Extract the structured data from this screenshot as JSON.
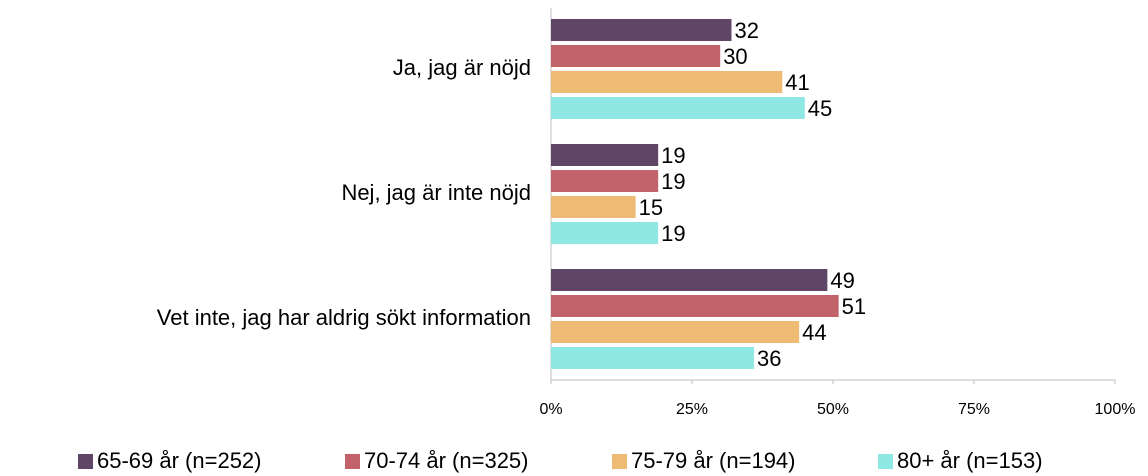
{
  "chart_data": {
    "type": "hbar",
    "categories": [
      "Ja, jag är nöjd",
      "Nej, jag är inte nöjd",
      "Vet inte, jag har aldrig sökt information"
    ],
    "series": [
      {
        "name": "65-69 år (n=252)",
        "color": "#5f4566",
        "values": [
          32,
          19,
          49
        ]
      },
      {
        "name": "70-74 år (n=325)",
        "color": "#c2626b",
        "values": [
          30,
          19,
          51
        ]
      },
      {
        "name": "75-79 år (n=194)",
        "color": "#edbb73",
        "values": [
          41,
          15,
          44
        ]
      },
      {
        "name": "80+ år (n=153)",
        "color": "#8fe8e3",
        "values": [
          45,
          19,
          36
        ]
      }
    ],
    "xlim": [
      0,
      100
    ],
    "xticks": [
      {
        "value": 0,
        "label": "0%"
      },
      {
        "value": 25,
        "label": "25%"
      },
      {
        "value": 50,
        "label": "50%"
      },
      {
        "value": 75,
        "label": "75%"
      },
      {
        "value": 100,
        "label": "100%"
      }
    ],
    "legend": "bottom"
  }
}
